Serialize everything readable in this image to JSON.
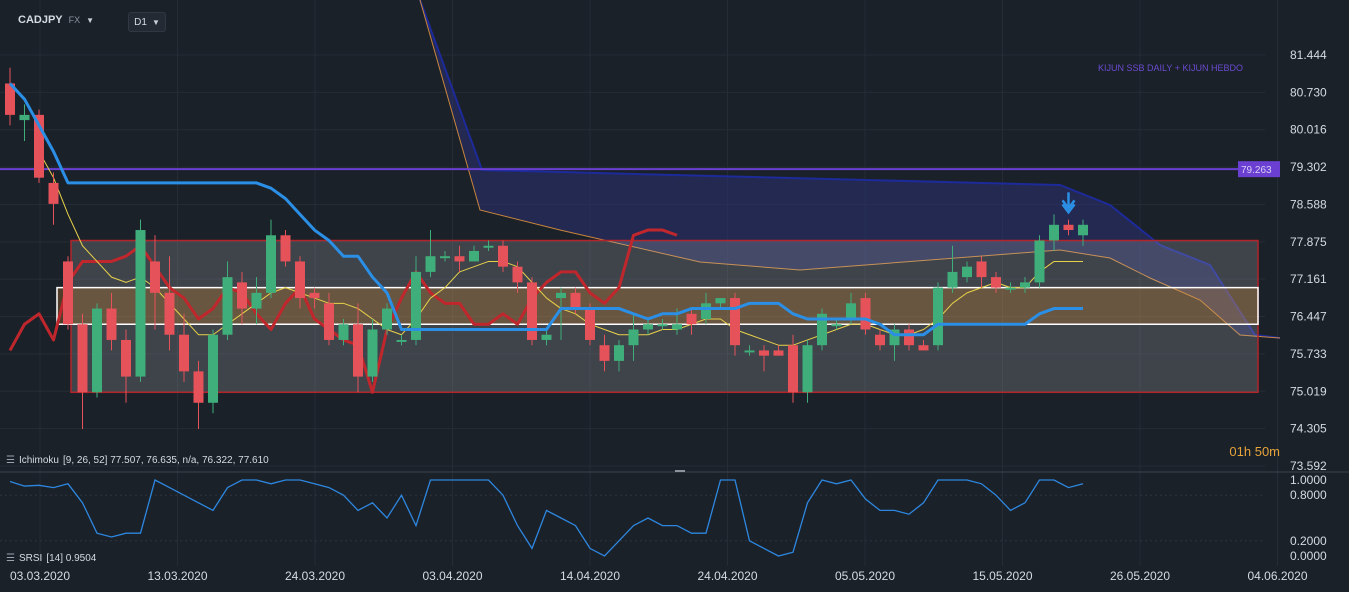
{
  "header": {
    "symbol": "CADJPY",
    "market": "FX",
    "timeframe": "D1"
  },
  "annotation": "KIJUN SSB DAILY + KIJUN HEBDO",
  "price_badge": "79.263",
  "timer": "01h 50m",
  "indicators": {
    "ichimoku_label": "Ichimoku",
    "ichimoku_values": "[9, 26, 52] 77.507, 76.635, n/a, 76.322, 77.610",
    "srsi_label": "SRSI",
    "srsi_values": "[14] 0.9504"
  },
  "colors": {
    "background": "#1b2129",
    "bull": "#3fae7a",
    "bear": "#e5525a",
    "kijun_blue": "#2b8fe6",
    "ssb_purple": "#6a3fd1",
    "tenkan_yellow": "#e8d24a",
    "chikou_red": "#c0272d",
    "cloud": "#2a3172",
    "rsi_line": "#2d87e0"
  },
  "chart_data": [
    {
      "type": "candlestick",
      "y_ticks": [
        "81.444",
        "80.730",
        "80.016",
        "79.302",
        "78.588",
        "77.875",
        "77.161",
        "76.447",
        "75.733",
        "75.019",
        "74.305",
        "73.592"
      ],
      "ylim": [
        73.592,
        81.444
      ],
      "x_ticks": [
        "03.03.2020",
        "13.03.2020",
        "24.03.2020",
        "03.04.2020",
        "14.04.2020",
        "24.04.2020",
        "05.05.2020",
        "15.05.2020",
        "26.05.2020",
        "04.06.2020"
      ],
      "candles": [
        {
          "o": 80.9,
          "h": 81.2,
          "l": 80.1,
          "c": 80.3
        },
        {
          "o": 80.2,
          "h": 80.5,
          "l": 79.8,
          "c": 80.3
        },
        {
          "o": 80.3,
          "h": 80.4,
          "l": 79.0,
          "c": 79.1
        },
        {
          "o": 79.0,
          "h": 79.2,
          "l": 78.2,
          "c": 78.6
        },
        {
          "o": 77.5,
          "h": 77.6,
          "l": 76.2,
          "c": 76.3
        },
        {
          "o": 76.3,
          "h": 76.5,
          "l": 74.3,
          "c": 75.0
        },
        {
          "o": 75.0,
          "h": 76.7,
          "l": 74.9,
          "c": 76.6
        },
        {
          "o": 76.6,
          "h": 76.9,
          "l": 75.8,
          "c": 76.0
        },
        {
          "o": 76.0,
          "h": 76.2,
          "l": 74.8,
          "c": 75.3
        },
        {
          "o": 75.3,
          "h": 78.3,
          "l": 75.2,
          "c": 78.1
        },
        {
          "o": 77.5,
          "h": 78.0,
          "l": 76.2,
          "c": 76.9
        },
        {
          "o": 76.9,
          "h": 77.6,
          "l": 75.8,
          "c": 76.1
        },
        {
          "o": 76.1,
          "h": 76.5,
          "l": 75.2,
          "c": 75.4
        },
        {
          "o": 75.4,
          "h": 75.6,
          "l": 74.3,
          "c": 74.8
        },
        {
          "o": 74.8,
          "h": 76.2,
          "l": 74.6,
          "c": 76.1
        },
        {
          "o": 76.1,
          "h": 77.5,
          "l": 76.0,
          "c": 77.2
        },
        {
          "o": 77.1,
          "h": 77.3,
          "l": 76.3,
          "c": 76.6
        },
        {
          "o": 76.6,
          "h": 77.2,
          "l": 76.3,
          "c": 76.9
        },
        {
          "o": 76.9,
          "h": 78.3,
          "l": 76.8,
          "c": 78.0
        },
        {
          "o": 78.0,
          "h": 78.1,
          "l": 77.4,
          "c": 77.5
        },
        {
          "o": 77.5,
          "h": 77.6,
          "l": 76.6,
          "c": 76.8
        },
        {
          "o": 76.9,
          "h": 77.0,
          "l": 76.6,
          "c": 76.8
        },
        {
          "o": 76.7,
          "h": 76.9,
          "l": 75.9,
          "c": 76.0
        },
        {
          "o": 76.0,
          "h": 76.4,
          "l": 75.9,
          "c": 76.3
        },
        {
          "o": 76.3,
          "h": 76.7,
          "l": 75.0,
          "c": 75.3
        },
        {
          "o": 75.3,
          "h": 76.4,
          "l": 75.2,
          "c": 76.2
        },
        {
          "o": 76.2,
          "h": 76.7,
          "l": 76.1,
          "c": 76.6
        },
        {
          "o": 76.0,
          "h": 76.1,
          "l": 75.9,
          "c": 76.0
        },
        {
          "o": 76.0,
          "h": 77.6,
          "l": 75.9,
          "c": 77.3
        },
        {
          "o": 77.3,
          "h": 78.1,
          "l": 77.2,
          "c": 77.6
        },
        {
          "o": 77.6,
          "h": 77.7,
          "l": 77.5,
          "c": 77.6
        },
        {
          "o": 77.6,
          "h": 77.8,
          "l": 77.3,
          "c": 77.5
        },
        {
          "o": 77.5,
          "h": 77.8,
          "l": 77.5,
          "c": 77.7
        },
        {
          "o": 77.8,
          "h": 77.9,
          "l": 77.7,
          "c": 77.8
        },
        {
          "o": 77.8,
          "h": 77.9,
          "l": 77.3,
          "c": 77.4
        },
        {
          "o": 77.4,
          "h": 77.5,
          "l": 76.9,
          "c": 77.1
        },
        {
          "o": 77.1,
          "h": 77.2,
          "l": 75.9,
          "c": 76.0
        },
        {
          "o": 76.0,
          "h": 76.2,
          "l": 75.9,
          "c": 76.1
        },
        {
          "o": 76.8,
          "h": 77.0,
          "l": 76.0,
          "c": 76.9
        },
        {
          "o": 76.9,
          "h": 77.0,
          "l": 76.5,
          "c": 76.6
        },
        {
          "o": 76.6,
          "h": 76.7,
          "l": 75.9,
          "c": 76.0
        },
        {
          "o": 75.9,
          "h": 76.1,
          "l": 75.4,
          "c": 75.6
        },
        {
          "o": 75.6,
          "h": 76.0,
          "l": 75.4,
          "c": 75.9
        },
        {
          "o": 75.9,
          "h": 76.5,
          "l": 75.6,
          "c": 76.2
        },
        {
          "o": 76.2,
          "h": 76.4,
          "l": 76.1,
          "c": 76.3
        },
        {
          "o": 76.3,
          "h": 76.4,
          "l": 76.2,
          "c": 76.3
        },
        {
          "o": 76.2,
          "h": 76.6,
          "l": 76.1,
          "c": 76.3
        },
        {
          "o": 76.5,
          "h": 76.6,
          "l": 76.1,
          "c": 76.3
        },
        {
          "o": 76.4,
          "h": 76.9,
          "l": 76.3,
          "c": 76.7
        },
        {
          "o": 76.7,
          "h": 76.8,
          "l": 76.6,
          "c": 76.8
        },
        {
          "o": 76.8,
          "h": 76.9,
          "l": 75.7,
          "c": 75.9
        },
        {
          "o": 75.8,
          "h": 75.9,
          "l": 75.7,
          "c": 75.8
        },
        {
          "o": 75.8,
          "h": 75.9,
          "l": 75.4,
          "c": 75.7
        },
        {
          "o": 75.8,
          "h": 75.9,
          "l": 75.7,
          "c": 75.7
        },
        {
          "o": 75.9,
          "h": 76.1,
          "l": 74.8,
          "c": 75.0
        },
        {
          "o": 75.0,
          "h": 76.0,
          "l": 74.8,
          "c": 75.9
        },
        {
          "o": 75.9,
          "h": 76.6,
          "l": 75.8,
          "c": 76.5
        },
        {
          "o": 76.3,
          "h": 76.4,
          "l": 76.2,
          "c": 76.3
        },
        {
          "o": 76.4,
          "h": 76.9,
          "l": 76.3,
          "c": 76.7
        },
        {
          "o": 76.8,
          "h": 76.9,
          "l": 76.1,
          "c": 76.2
        },
        {
          "o": 76.1,
          "h": 76.2,
          "l": 75.8,
          "c": 75.9
        },
        {
          "o": 75.9,
          "h": 76.3,
          "l": 75.6,
          "c": 76.2
        },
        {
          "o": 76.2,
          "h": 76.3,
          "l": 75.8,
          "c": 75.9
        },
        {
          "o": 75.9,
          "h": 76.0,
          "l": 75.8,
          "c": 75.8
        },
        {
          "o": 75.9,
          "h": 77.1,
          "l": 75.8,
          "c": 77.0
        },
        {
          "o": 77.0,
          "h": 77.8,
          "l": 76.9,
          "c": 77.3
        },
        {
          "o": 77.2,
          "h": 77.5,
          "l": 77.1,
          "c": 77.4
        },
        {
          "o": 77.5,
          "h": 77.6,
          "l": 77.0,
          "c": 77.2
        },
        {
          "o": 77.2,
          "h": 77.3,
          "l": 76.9,
          "c": 77.0
        },
        {
          "o": 77.0,
          "h": 77.1,
          "l": 76.9,
          "c": 77.0
        },
        {
          "o": 77.0,
          "h": 77.2,
          "l": 76.9,
          "c": 77.1
        },
        {
          "o": 77.1,
          "h": 78.0,
          "l": 77.0,
          "c": 77.9
        },
        {
          "o": 77.9,
          "h": 78.4,
          "l": 77.7,
          "c": 78.2
        },
        {
          "o": 78.2,
          "h": 78.3,
          "l": 78.0,
          "c": 78.1
        },
        {
          "o": 78.0,
          "h": 78.3,
          "l": 77.8,
          "c": 78.2
        }
      ],
      "tenkan": [
        null,
        null,
        79.6,
        79.1,
        78.4,
        77.8,
        77.5,
        77.2,
        77.1,
        77.2,
        77.0,
        76.7,
        76.4,
        76.1,
        76.1,
        76.3,
        76.5,
        76.7,
        76.9,
        77.0,
        76.9,
        76.8,
        76.7,
        76.7,
        76.6,
        76.4,
        76.2,
        76.1,
        76.4,
        76.8,
        77.0,
        77.3,
        77.4,
        77.5,
        77.5,
        77.4,
        77.1,
        76.8,
        76.6,
        76.5,
        76.3,
        76.2,
        76.1,
        76.1,
        76.1,
        76.2,
        76.2,
        76.3,
        76.4,
        76.4,
        76.2,
        76.1,
        76.0,
        75.9,
        75.9,
        76.0,
        76.1,
        76.2,
        76.3,
        76.3,
        76.2,
        76.1,
        76.1,
        76.2,
        76.4,
        76.7,
        76.9,
        77.0,
        77.1,
        77.0,
        77.0,
        77.3,
        77.5,
        77.5,
        77.5
      ],
      "kijun": [
        80.9,
        80.6,
        80.1,
        79.6,
        79.0,
        79.0,
        79.0,
        79.0,
        79.0,
        79.0,
        79.0,
        79.0,
        79.0,
        79.0,
        79.0,
        79.0,
        79.0,
        79.0,
        78.9,
        78.7,
        78.4,
        78.1,
        77.9,
        77.6,
        77.6,
        77.2,
        76.9,
        76.2,
        76.2,
        76.2,
        76.2,
        76.2,
        76.2,
        76.2,
        76.2,
        76.2,
        76.2,
        76.2,
        76.6,
        76.6,
        76.6,
        76.6,
        76.6,
        76.5,
        76.4,
        76.5,
        76.5,
        76.6,
        76.6,
        76.6,
        76.6,
        76.7,
        76.7,
        76.7,
        76.5,
        76.4,
        76.4,
        76.4,
        76.4,
        76.4,
        76.3,
        76.1,
        76.1,
        76.1,
        76.3,
        76.3,
        76.3,
        76.3,
        76.3,
        76.3,
        76.3,
        76.5,
        76.6,
        76.6,
        76.6
      ],
      "ssb_hebdo": 79.263,
      "chikou": [
        75.8,
        76.3,
        76.5,
        76.0,
        77.1,
        77.5,
        77.5,
        77.5,
        77.6,
        77.8,
        77.4,
        77.0,
        76.8,
        76.4,
        76.6,
        77.0,
        76.9,
        76.5,
        76.2,
        76.7,
        77.0,
        76.4,
        76.2,
        76.0,
        75.9,
        75.0,
        76.2,
        76.8,
        77.3,
        76.9,
        76.7,
        76.7,
        76.3,
        76.3,
        76.5,
        76.3,
        76.8,
        77.1,
        77.3,
        77.3,
        76.9,
        76.7,
        77.0,
        78.0,
        78.1,
        78.1,
        78.0
      ],
      "zones": {
        "range": {
          "top": 77.9,
          "bottom": 75.0
        },
        "key_zone": {
          "top": 77.0,
          "bottom": 76.3
        }
      }
    },
    {
      "type": "line",
      "name": "SRSI",
      "y_ticks": [
        "1.0000",
        "0.8000",
        "0.2000",
        "0.0000"
      ],
      "ylim": [
        0,
        1
      ],
      "values": [
        0.98,
        0.92,
        0.93,
        0.9,
        0.95,
        0.7,
        0.3,
        0.25,
        0.3,
        0.3,
        1.0,
        0.9,
        0.8,
        0.7,
        0.6,
        0.9,
        1.0,
        1.0,
        0.95,
        1.0,
        1.0,
        0.95,
        0.9,
        0.8,
        0.6,
        0.7,
        0.5,
        0.8,
        0.4,
        1.0,
        1.0,
        1.0,
        1.0,
        1.0,
        0.8,
        0.4,
        0.1,
        0.6,
        0.5,
        0.4,
        0.1,
        0.0,
        0.2,
        0.4,
        0.5,
        0.4,
        0.4,
        0.3,
        0.3,
        1.0,
        1.0,
        0.2,
        0.1,
        0.0,
        0.05,
        0.7,
        1.0,
        0.95,
        1.0,
        0.75,
        0.6,
        0.6,
        0.55,
        0.7,
        1.0,
        1.0,
        1.0,
        0.95,
        0.8,
        0.6,
        0.7,
        1.0,
        1.0,
        0.9,
        0.95
      ]
    }
  ]
}
